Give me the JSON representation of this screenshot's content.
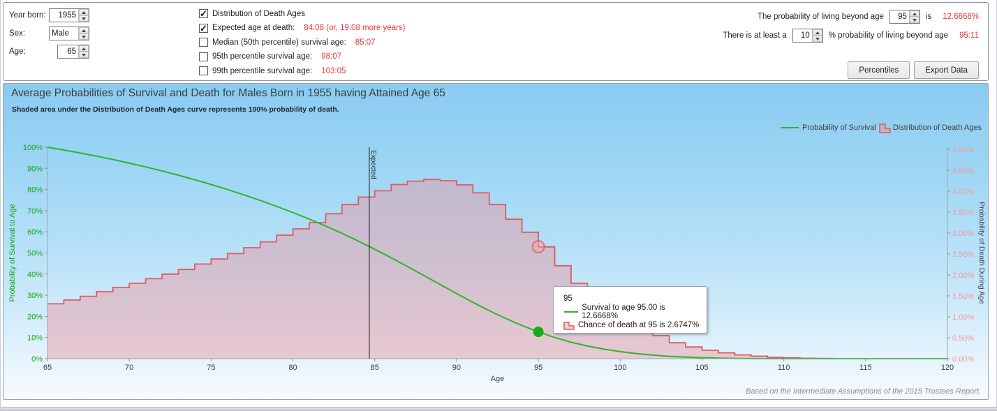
{
  "colors": {
    "red_value": "#e8383d",
    "survival_line": "#2db42d",
    "survival_tick": "#16a316",
    "death_line": "#e2595e",
    "death_fill": "rgba(233,148,158,0.45)",
    "death_tick": "#f29a9a",
    "axis_line": "#a6a6a6",
    "x_tick_text": "#3c3c3c"
  },
  "form": {
    "year_born": {
      "label": "Year born:",
      "value": "1955"
    },
    "sex": {
      "label": "Sex:",
      "value": "Male"
    },
    "age": {
      "label": "Age:",
      "value": "65"
    }
  },
  "options": {
    "items": [
      {
        "label": "Distribution of Death Ages",
        "checked": true,
        "value": ""
      },
      {
        "label": "Expected age at death:",
        "checked": true,
        "value": "84:08 (or, 19:08 more years)"
      },
      {
        "label": "Median (50th percentile) survival age:",
        "checked": false,
        "value": "85:07"
      },
      {
        "label": "95th percentile survival age:",
        "checked": false,
        "value": "98:07"
      },
      {
        "label": "99th percentile survival age:",
        "checked": false,
        "value": "103:05"
      }
    ]
  },
  "queries": {
    "line1": {
      "prefix": "The probability of living beyond age",
      "value": "95",
      "middle": "is",
      "result": "12.6668%"
    },
    "line2": {
      "prefix": "There is at least a",
      "value": "10",
      "middle": "% probability of living beyond age",
      "result": "95:11"
    }
  },
  "buttons": {
    "percentiles": "Percentiles",
    "export": "Export Data"
  },
  "chart": {
    "title": "Average Probabilities of Survival and Death for Males Born in 1955 having Attained Age 65",
    "subtitle": "Shaded area under the Distribution of Death Ages curve represents 100% probability of death.",
    "legend": [
      {
        "name": "Probability of Survival",
        "type": "line"
      },
      {
        "name": "Distribution of Death Ages",
        "type": "step"
      }
    ],
    "expected_label": "Expected",
    "tooltip": {
      "title": "95",
      "line1": "Survival to age 95.00 is 12.6668%",
      "line2": "Chance of death at 95 is 2.6747%"
    },
    "footer": "Based on the Intermediate Assumptions of the 2015 Trustees Report."
  },
  "chart_data": {
    "type": "line+step-area",
    "xlabel": "Age",
    "xlim": [
      65,
      120
    ],
    "x_ticks": [
      65,
      70,
      75,
      80,
      85,
      90,
      95,
      100,
      105,
      110,
      115,
      120
    ],
    "left_axis": {
      "label": "Probability of Survival to Age",
      "min": 0,
      "max": 100,
      "step": 10
    },
    "right_axis": {
      "label": "Probability of Death During Age",
      "min": 0,
      "max": 5,
      "step": 0.5
    },
    "expected_age_line": 84.67,
    "ages": [
      65,
      66,
      67,
      68,
      69,
      70,
      71,
      72,
      73,
      74,
      75,
      76,
      77,
      78,
      79,
      80,
      81,
      82,
      83,
      84,
      85,
      86,
      87,
      88,
      89,
      90,
      91,
      92,
      93,
      94,
      95,
      96,
      97,
      98,
      99,
      100,
      101,
      102,
      103,
      104,
      105,
      106,
      107,
      108,
      109,
      110,
      111,
      112,
      113,
      114,
      115,
      116,
      117,
      118,
      119,
      120
    ],
    "series": [
      {
        "name": "Probability of Survival",
        "axis": "left",
        "units": "%",
        "values": [
          100,
          98.69,
          97.29,
          95.8,
          94.2,
          92.5,
          90.7,
          88.79,
          86.77,
          84.64,
          82.38,
          80,
          77.49,
          74.84,
          72.05,
          69.1,
          66,
          62.75,
          59.29,
          55.61,
          51.75,
          47.74,
          43.58,
          39.34,
          35.06,
          30.81,
          26.66,
          22.7,
          19.02,
          15.69,
          12.67,
          10,
          7.78,
          5.98,
          4.55,
          3.35,
          2.4,
          1.68,
          1.13,
          0.75,
          0.47,
          0.27,
          0.13,
          0.04,
          0.01,
          0,
          0,
          0,
          0,
          0,
          0,
          0,
          0,
          0,
          0,
          0
        ]
      },
      {
        "name": "Distribution of Death Ages",
        "axis": "right",
        "units": "%",
        "values": [
          1.31,
          1.4,
          1.49,
          1.6,
          1.7,
          1.8,
          1.91,
          2.02,
          2.13,
          2.26,
          2.38,
          2.51,
          2.65,
          2.79,
          2.95,
          3.1,
          3.25,
          3.46,
          3.68,
          3.86,
          4.01,
          4.16,
          4.24,
          4.28,
          4.25,
          4.15,
          3.96,
          3.68,
          3.33,
          3.02,
          2.67,
          2.22,
          1.8,
          1.43,
          1.2,
          0.95,
          0.72,
          0.55,
          0.38,
          0.28,
          0.2,
          0.14,
          0.09,
          0.06,
          0.03,
          0.02,
          0.01,
          0.005,
          0,
          0,
          0,
          0,
          0,
          0,
          0
        ]
      }
    ],
    "markers": [
      {
        "series": "Probability of Survival",
        "age": 95,
        "value": 12.6668
      },
      {
        "series": "Distribution of Death Ages",
        "age": 95,
        "value": 2.6747
      }
    ]
  }
}
